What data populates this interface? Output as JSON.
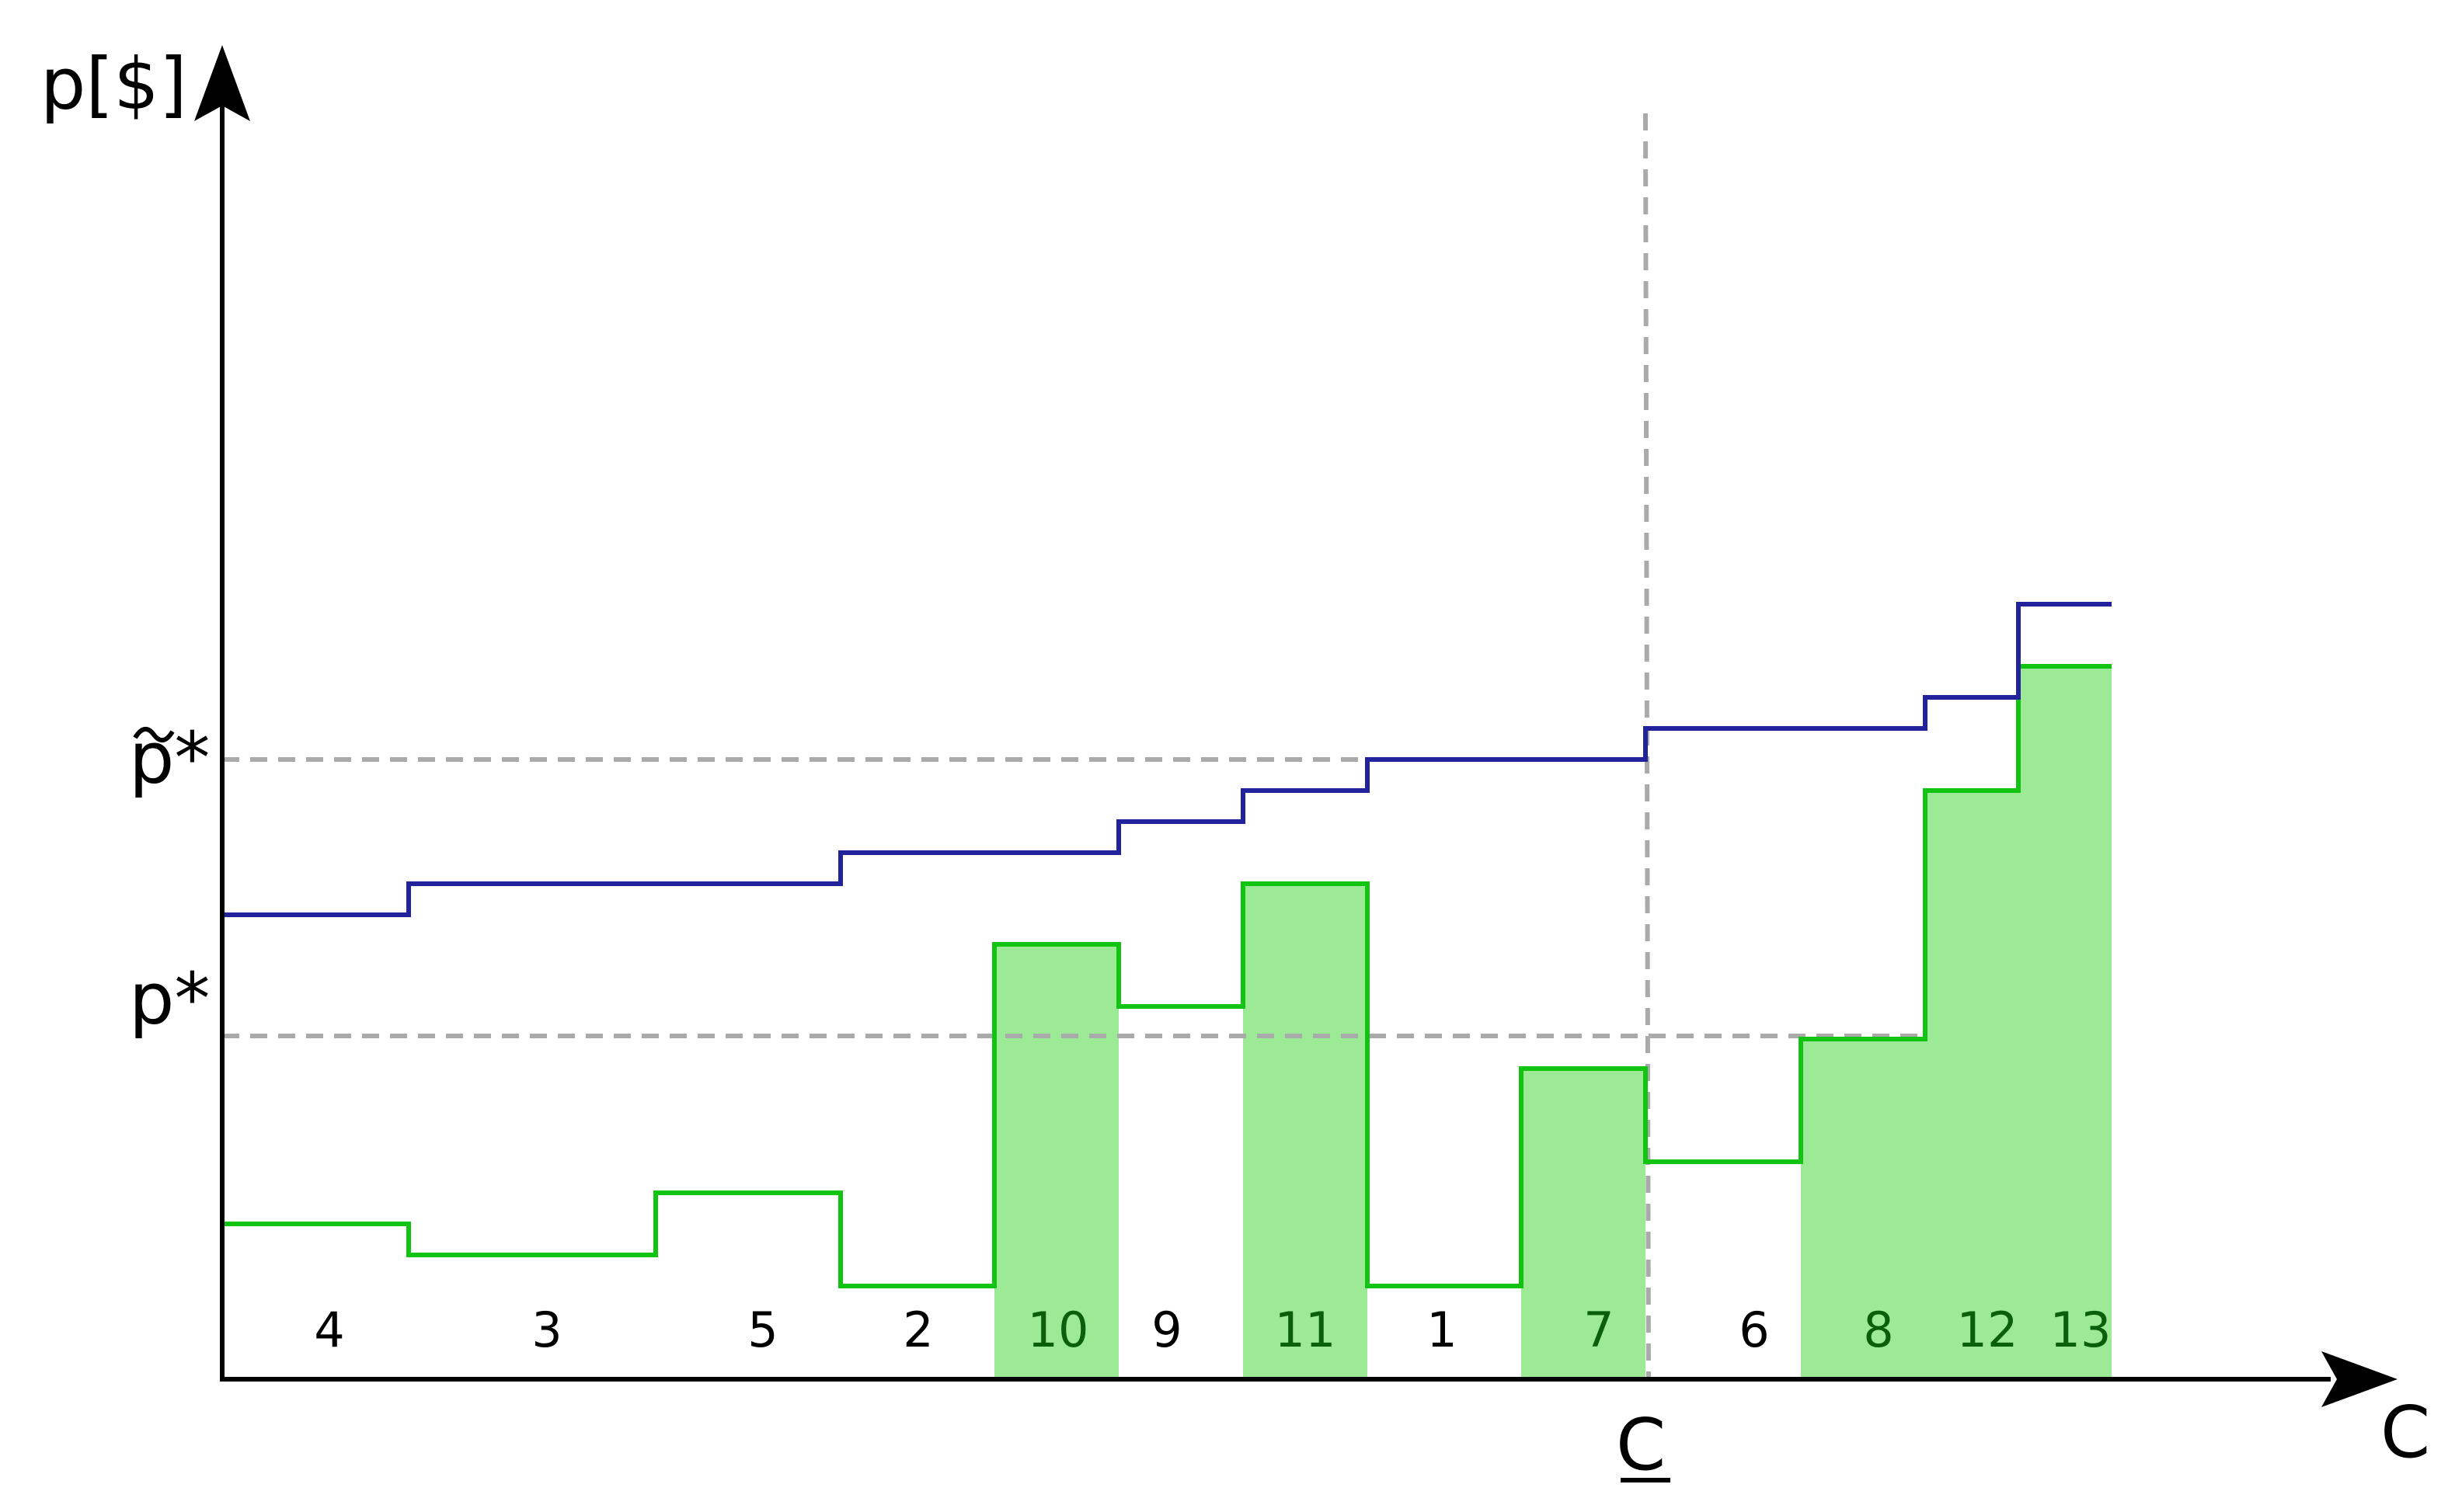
{
  "axis_labels": {
    "y": "p[$]",
    "x": "C",
    "c_marker": "C",
    "p_tilde_star": "p*",
    "p_star": "p*"
  },
  "colors": {
    "axis": "#000000",
    "supply_line": "#22229a",
    "bid_line": "#11c411",
    "fill": "#9ce996",
    "guide": "#aaaaaa",
    "selected_label": "#0b5e0b",
    "unselected_label": "#000000"
  },
  "segments": [
    {
      "label": "4",
      "selected": false
    },
    {
      "label": "3",
      "selected": false
    },
    {
      "label": "5",
      "selected": false
    },
    {
      "label": "2",
      "selected": false
    },
    {
      "label": "10",
      "selected": true
    },
    {
      "label": "9",
      "selected": false
    },
    {
      "label": "11",
      "selected": true
    },
    {
      "label": "1",
      "selected": false
    },
    {
      "label": "7",
      "selected": true
    },
    {
      "label": "6",
      "selected": false
    },
    {
      "label": "8",
      "selected": true
    },
    {
      "label": "12",
      "selected": true
    },
    {
      "label": "13",
      "selected": true
    }
  ]
}
